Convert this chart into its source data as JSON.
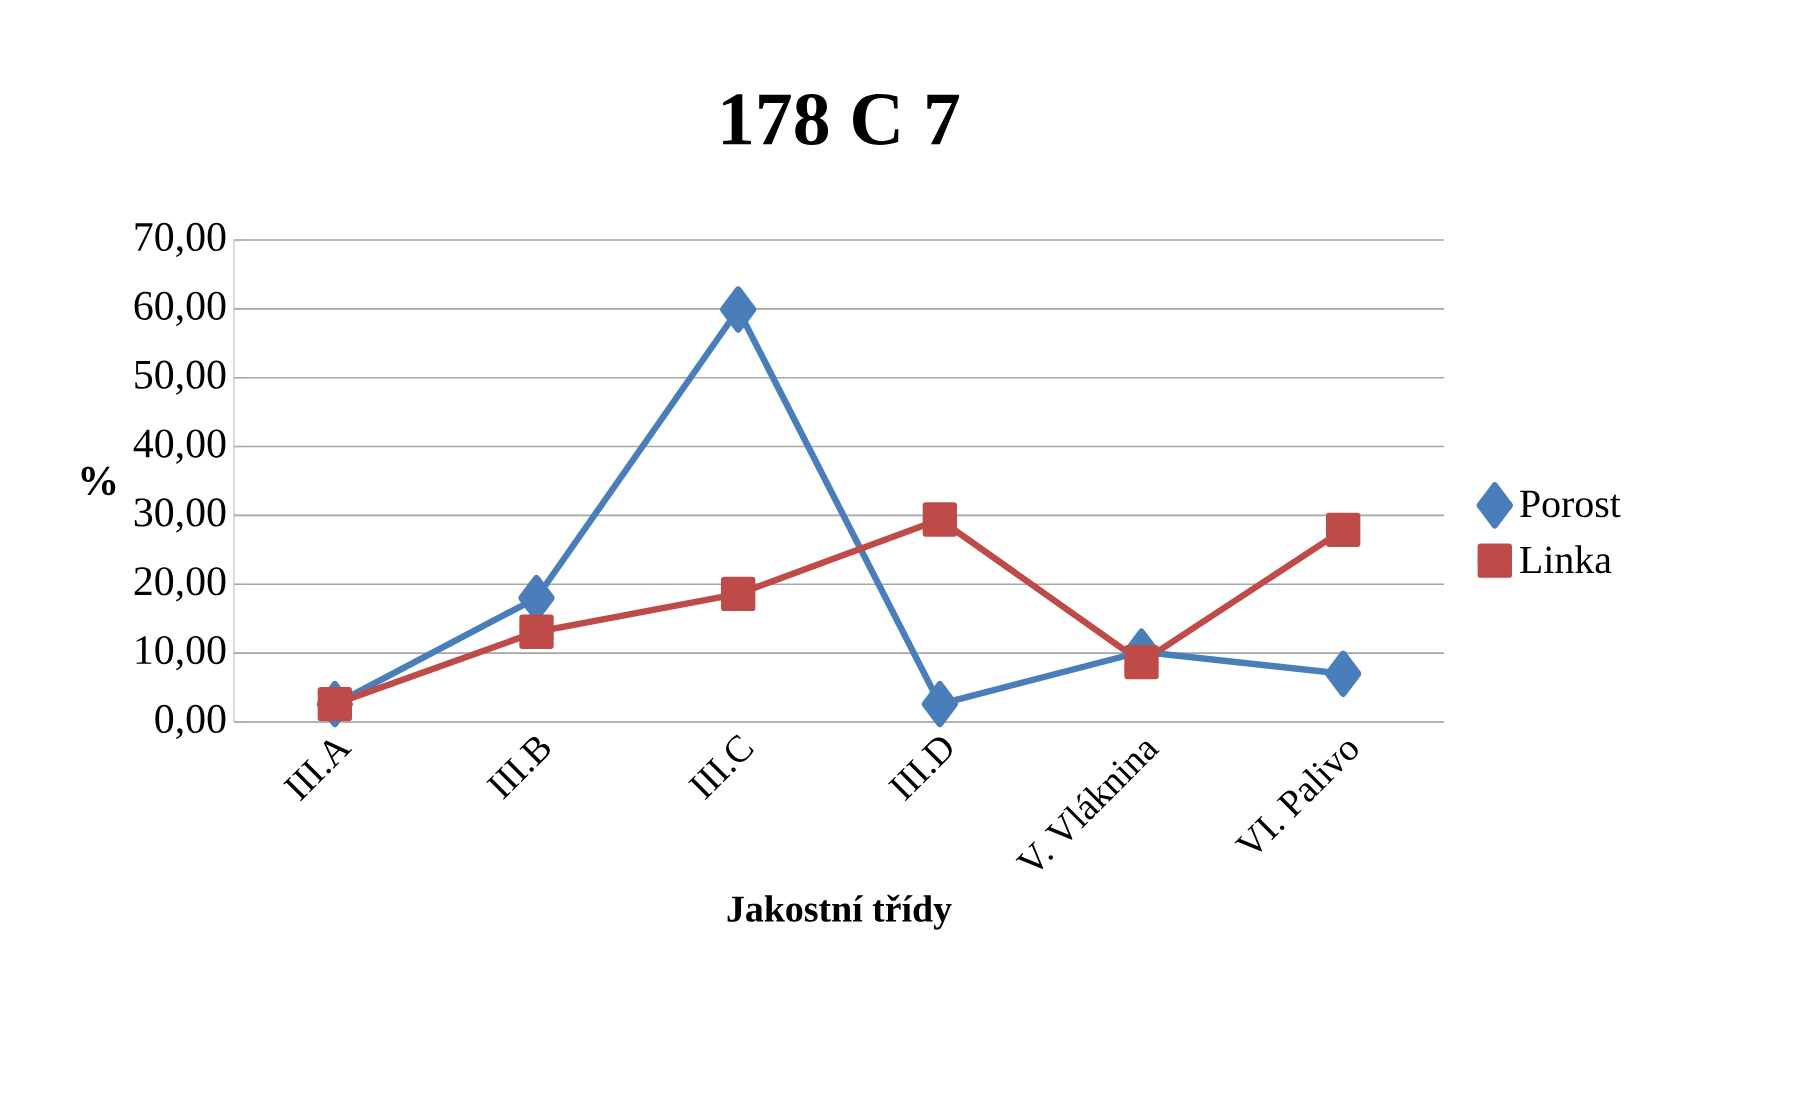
{
  "chart_data": {
    "type": "line",
    "title": "178 C 7",
    "xlabel": "Jakostní třídy",
    "ylabel": "%",
    "categories": [
      "III.A",
      "III.B",
      "III.C",
      "III.D",
      "V. Vláknina",
      "VI. Palivo"
    ],
    "series": [
      {
        "name": "Porost",
        "color": "#4a7ebb",
        "marker": "diamond",
        "values": [
          2.6,
          18.0,
          59.9,
          2.6,
          10.2,
          7.0
        ]
      },
      {
        "name": "Linka",
        "color": "#be4b48",
        "marker": "square",
        "values": [
          2.6,
          13.1,
          18.6,
          29.4,
          8.7,
          27.9
        ]
      }
    ],
    "ylim": [
      0,
      70
    ],
    "yticks": [
      {
        "value": 0,
        "label": "0,00"
      },
      {
        "value": 10,
        "label": "10,00"
      },
      {
        "value": 20,
        "label": "20,00"
      },
      {
        "value": 30,
        "label": "30,00"
      },
      {
        "value": 40,
        "label": "40,00"
      },
      {
        "value": 50,
        "label": "50,00"
      },
      {
        "value": 60,
        "label": "60,00"
      },
      {
        "value": 70,
        "label": "70,00"
      }
    ],
    "grid": "y",
    "legend": "right",
    "line_style": "solid"
  }
}
